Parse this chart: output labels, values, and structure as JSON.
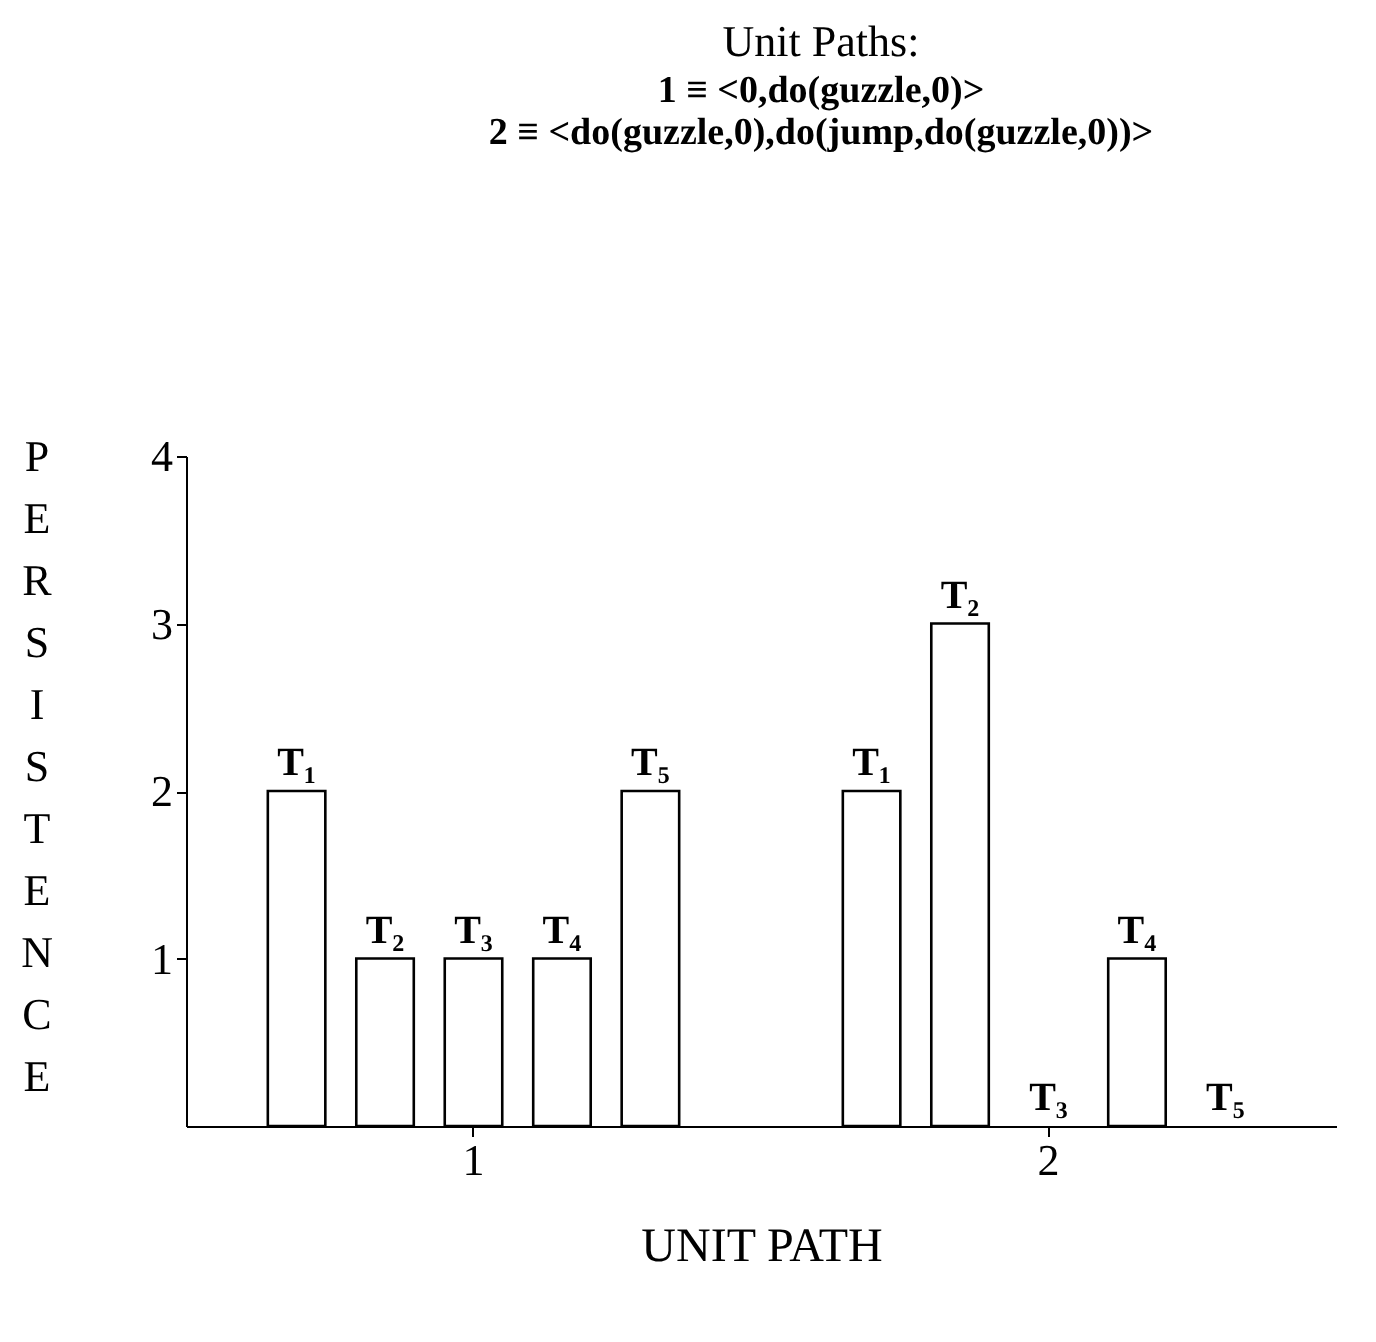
{
  "chart_data": {
    "type": "bar",
    "title": "Unit Paths:",
    "subtitle": "1 ≡ <0,do(guzzle,0)>\n2 ≡ <do(guzzle,0),do(jump,do(guzzle,0))>",
    "xlabel": "UNIT PATH",
    "ylabel": "PERSISTENCE",
    "categories": [
      "1",
      "2"
    ],
    "series": [
      {
        "name": "T₁",
        "color": "#ffffff",
        "values": [
          2,
          2
        ]
      },
      {
        "name": "T₂",
        "color": "#ffffff",
        "values": [
          1,
          3
        ]
      },
      {
        "name": "T₃",
        "color": "#ffffff",
        "values": [
          1,
          0
        ]
      },
      {
        "name": "T₄",
        "color": "#ffffff",
        "values": [
          1,
          1
        ]
      },
      {
        "name": "T₅",
        "color": "#ffffff",
        "values": [
          2,
          0
        ]
      }
    ],
    "ylim": [
      0,
      4
    ],
    "yticks": [
      {
        "value": 1,
        "label": "1"
      },
      {
        "value": 2,
        "label": "2"
      },
      {
        "value": 3,
        "label": "3"
      },
      {
        "value": 4,
        "label": "4"
      }
    ],
    "grid": false,
    "legend": false
  }
}
